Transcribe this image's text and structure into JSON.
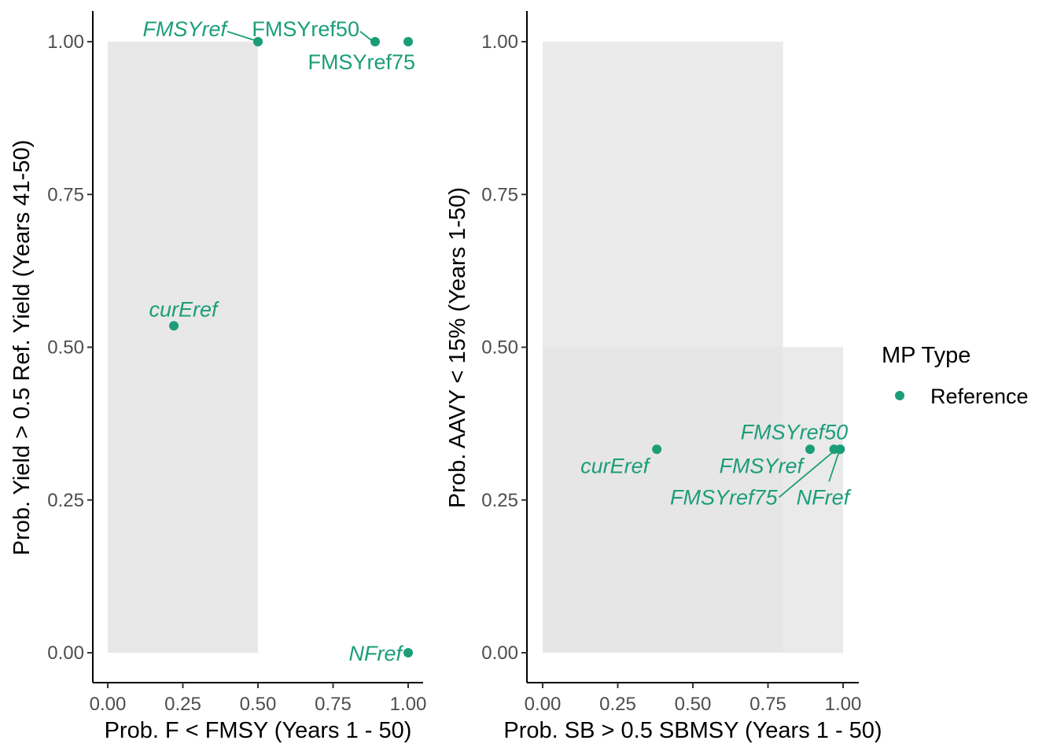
{
  "colors": {
    "reference": "#1b9e77",
    "region": "#e5e5e5",
    "axis": "#000000",
    "tick_text": "#4d4d4d"
  },
  "legend": {
    "title": "MP Type",
    "items": [
      {
        "label": "Reference",
        "color": "#1b9e77"
      }
    ]
  },
  "chart_data": [
    {
      "type": "scatter",
      "xlabel": "Prob. F < FMSY (Years 1 - 50)",
      "ylabel": "Prob. Yield > 0.5 Ref. Yield (Years 41-50)",
      "xlim": [
        0,
        1
      ],
      "ylim": [
        0,
        1
      ],
      "xticks": [
        "0.00",
        "0.25",
        "0.50",
        "0.75",
        "1.00"
      ],
      "yticks": [
        "0.00",
        "0.25",
        "0.50",
        "0.75",
        "1.00"
      ],
      "grid": false,
      "shaded_regions": [
        {
          "x": [
            0,
            0.5
          ],
          "y": [
            0,
            1
          ]
        }
      ],
      "series": [
        {
          "name": "Reference",
          "points": [
            {
              "label": "FMSYref",
              "x": 0.5,
              "y": 1.0,
              "italic": true
            },
            {
              "label": "FMSYref50",
              "x": 0.89,
              "y": 1.0,
              "italic": false
            },
            {
              "label": "FMSYref75",
              "x": 1.0,
              "y": 1.0,
              "italic": false
            },
            {
              "label": "curEref",
              "x": 0.22,
              "y": 0.535,
              "italic": true
            },
            {
              "label": "NFref",
              "x": 1.0,
              "y": 0.0,
              "italic": true
            }
          ]
        }
      ]
    },
    {
      "type": "scatter",
      "xlabel": "Prob. SB > 0.5 SBMSY (Years 1 - 50)",
      "ylabel": "Prob. AAVY < 15% (Years 1-50)",
      "xlim": [
        0,
        1
      ],
      "ylim": [
        0,
        1
      ],
      "xticks": [
        "0.00",
        "0.25",
        "0.50",
        "0.75",
        "1.00"
      ],
      "yticks": [
        "0.00",
        "0.25",
        "0.50",
        "0.75",
        "1.00"
      ],
      "grid": false,
      "shaded_regions": [
        {
          "x": [
            0,
            0.8
          ],
          "y": [
            0,
            1
          ]
        },
        {
          "x": [
            0,
            1
          ],
          "y": [
            0,
            0.5
          ]
        }
      ],
      "series": [
        {
          "name": "Reference",
          "points": [
            {
              "label": "curEref",
              "x": 0.38,
              "y": 0.333,
              "italic": true
            },
            {
              "label": "FMSYref",
              "x": 0.89,
              "y": 0.333,
              "italic": true
            },
            {
              "label": "FMSYref75",
              "x": 0.97,
              "y": 0.333,
              "italic": true
            },
            {
              "label": "FMSYref50",
              "x": 0.99,
              "y": 0.333,
              "italic": true
            },
            {
              "label": "NFref",
              "x": 0.99,
              "y": 0.333,
              "italic": true
            }
          ]
        }
      ]
    }
  ]
}
